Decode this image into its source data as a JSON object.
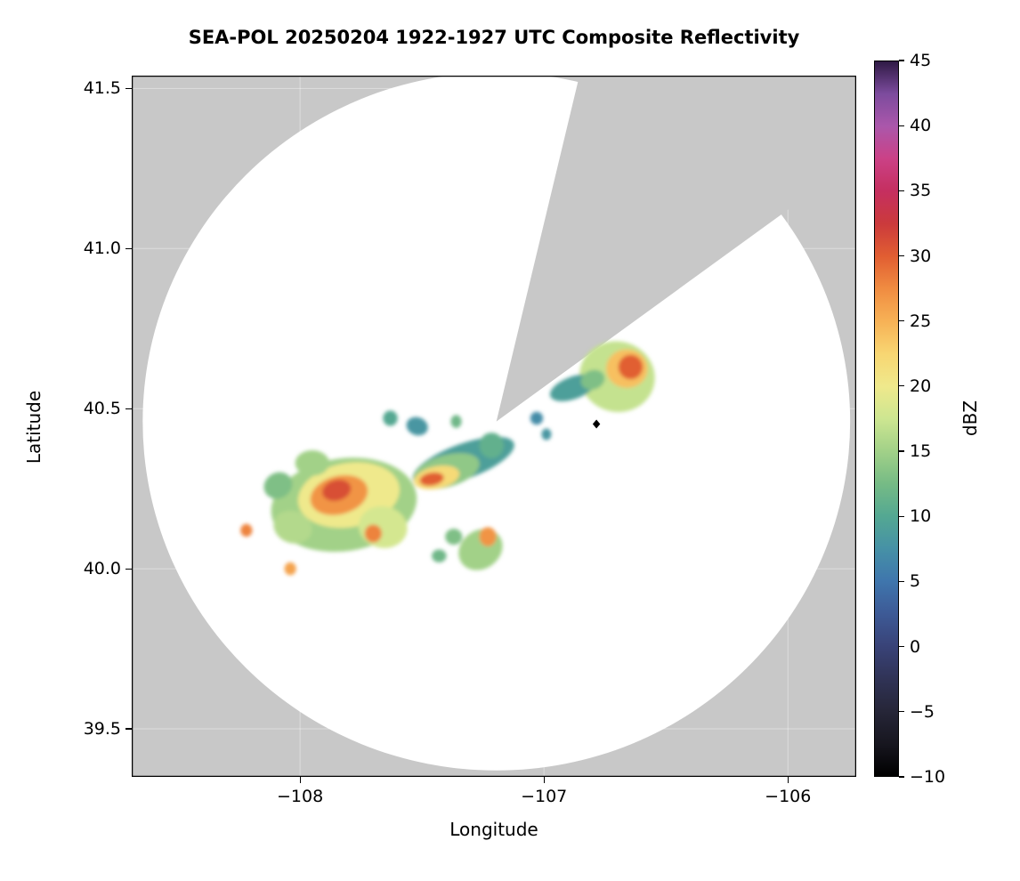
{
  "title": "SEA-POL 20250204 1922-1927 UTC Composite Reflectivity",
  "axes": {
    "xlabel": "Longitude",
    "ylabel": "Latitude",
    "x_ticks": [
      {
        "value": -108,
        "label": "−108"
      },
      {
        "value": -107,
        "label": "−107"
      },
      {
        "value": -106,
        "label": "−106"
      }
    ],
    "y_ticks": [
      {
        "value": 39.5,
        "label": "39.5"
      },
      {
        "value": 40.0,
        "label": "40.0"
      },
      {
        "value": 40.5,
        "label": "40.5"
      },
      {
        "value": 41.0,
        "label": "41.0"
      },
      {
        "value": 41.5,
        "label": "41.5"
      }
    ]
  },
  "colorbar": {
    "label": "dBZ",
    "min": -10,
    "max": 45,
    "ticks": [
      {
        "value": 45,
        "label": "45"
      },
      {
        "value": 40,
        "label": "40"
      },
      {
        "value": 35,
        "label": "35"
      },
      {
        "value": 30,
        "label": "30"
      },
      {
        "value": 25,
        "label": "25"
      },
      {
        "value": 20,
        "label": "20"
      },
      {
        "value": 15,
        "label": "15"
      },
      {
        "value": 10,
        "label": "10"
      },
      {
        "value": 5,
        "label": "5"
      },
      {
        "value": 0,
        "label": "0"
      },
      {
        "value": -5,
        "label": "−5"
      },
      {
        "value": -10,
        "label": "−10"
      }
    ],
    "stops": [
      [
        -10,
        "#000000"
      ],
      [
        -7.5,
        "#17161f"
      ],
      [
        -5,
        "#262638"
      ],
      [
        -2.5,
        "#303356"
      ],
      [
        0,
        "#394378"
      ],
      [
        2.5,
        "#3d5a96"
      ],
      [
        5,
        "#3f76ad"
      ],
      [
        7.5,
        "#4691a6"
      ],
      [
        10,
        "#54a892"
      ],
      [
        12.5,
        "#76bb85"
      ],
      [
        15,
        "#a2d188"
      ],
      [
        17.5,
        "#cde691"
      ],
      [
        20,
        "#efe98c"
      ],
      [
        22.5,
        "#f8d672"
      ],
      [
        25,
        "#f7b256"
      ],
      [
        27.5,
        "#f08c41"
      ],
      [
        30,
        "#e15e32"
      ],
      [
        32.5,
        "#cb3a3c"
      ],
      [
        35,
        "#c52f5f"
      ],
      [
        37.5,
        "#cb4186"
      ],
      [
        40,
        "#ab57ab"
      ],
      [
        42.5,
        "#7c4b9d"
      ],
      [
        45,
        "#2f1a45"
      ]
    ]
  },
  "chart_data": {
    "type": "heatmap",
    "title": "SEA-POL 20250204 1922-1927 UTC Composite Reflectivity",
    "xlabel": "Longitude",
    "ylabel": "Latitude",
    "xlim": [
      -108.69,
      -105.72
    ],
    "ylim": [
      39.35,
      41.54
    ],
    "grid": true,
    "mask_color": "#c8c8c8",
    "colorbar": {
      "label": "dBZ",
      "range": [
        -10,
        45
      ],
      "tick_step": 5
    },
    "radar": {
      "name": "SEA-POL",
      "center_lon": -107.195,
      "center_lat": 40.46,
      "range_lon_deg": 1.45,
      "range_lat_deg": 1.09
    },
    "blocked_sector_azimuth_deg": [
      13.5,
      54
    ],
    "marker": {
      "shape": "diamond",
      "color": "#000000",
      "lon": -106.785,
      "lat": 40.452
    },
    "echoes": [
      {
        "lon": -107.82,
        "lat": 40.2,
        "rx": 0.3,
        "ry": 0.145,
        "rot": -8,
        "dbz": 15
      },
      {
        "lon": -107.8,
        "lat": 40.23,
        "rx": 0.21,
        "ry": 0.1,
        "rot": -10,
        "dbz": 20
      },
      {
        "lon": -107.84,
        "lat": 40.23,
        "rx": 0.12,
        "ry": 0.06,
        "rot": -15,
        "dbz": 27
      },
      {
        "lon": -107.85,
        "lat": 40.245,
        "rx": 0.06,
        "ry": 0.032,
        "rot": -15,
        "dbz": 31
      },
      {
        "lon": -107.66,
        "lat": 40.13,
        "rx": 0.1,
        "ry": 0.065,
        "rot": 10,
        "dbz": 18
      },
      {
        "lon": -107.7,
        "lat": 40.11,
        "rx": 0.035,
        "ry": 0.028,
        "rot": 0,
        "dbz": 28
      },
      {
        "lon": -108.03,
        "lat": 40.13,
        "rx": 0.08,
        "ry": 0.05,
        "rot": 20,
        "dbz": 16
      },
      {
        "lon": -107.95,
        "lat": 40.33,
        "rx": 0.07,
        "ry": 0.04,
        "rot": 0,
        "dbz": 15
      },
      {
        "lon": -108.09,
        "lat": 40.26,
        "rx": 0.06,
        "ry": 0.04,
        "rot": -30,
        "dbz": 13
      },
      {
        "lon": -108.22,
        "lat": 40.12,
        "rx": 0.024,
        "ry": 0.02,
        "rot": 0,
        "dbz": 28
      },
      {
        "lon": -108.04,
        "lat": 40.0,
        "rx": 0.024,
        "ry": 0.02,
        "rot": 0,
        "dbz": 26
      },
      {
        "lon": -107.33,
        "lat": 40.335,
        "rx": 0.22,
        "ry": 0.055,
        "rot": -20,
        "dbz": 9
      },
      {
        "lon": -107.4,
        "lat": 40.305,
        "rx": 0.14,
        "ry": 0.05,
        "rot": -16,
        "dbz": 14
      },
      {
        "lon": -107.44,
        "lat": 40.285,
        "rx": 0.095,
        "ry": 0.035,
        "rot": -12,
        "dbz": 22
      },
      {
        "lon": -107.46,
        "lat": 40.28,
        "rx": 0.05,
        "ry": 0.02,
        "rot": -10,
        "dbz": 30
      },
      {
        "lon": -107.215,
        "lat": 40.385,
        "rx": 0.05,
        "ry": 0.04,
        "rot": 0,
        "dbz": 11
      },
      {
        "lon": -107.52,
        "lat": 40.445,
        "rx": 0.045,
        "ry": 0.028,
        "rot": 20,
        "dbz": 8
      },
      {
        "lon": -107.63,
        "lat": 40.47,
        "rx": 0.03,
        "ry": 0.024,
        "rot": 0,
        "dbz": 10
      },
      {
        "lon": -107.36,
        "lat": 40.46,
        "rx": 0.022,
        "ry": 0.02,
        "rot": 0,
        "dbz": 12
      },
      {
        "lon": -107.26,
        "lat": 40.06,
        "rx": 0.095,
        "ry": 0.06,
        "rot": -35,
        "dbz": 15
      },
      {
        "lon": -107.23,
        "lat": 40.1,
        "rx": 0.035,
        "ry": 0.03,
        "rot": 0,
        "dbz": 27
      },
      {
        "lon": -107.37,
        "lat": 40.1,
        "rx": 0.035,
        "ry": 0.025,
        "rot": 0,
        "dbz": 13
      },
      {
        "lon": -107.43,
        "lat": 40.04,
        "rx": 0.03,
        "ry": 0.02,
        "rot": 0,
        "dbz": 12
      },
      {
        "lon": -106.7,
        "lat": 40.6,
        "rx": 0.155,
        "ry": 0.11,
        "rot": 15,
        "dbz": 17
      },
      {
        "lon": -106.66,
        "lat": 40.625,
        "rx": 0.085,
        "ry": 0.06,
        "rot": 0,
        "dbz": 24
      },
      {
        "lon": -106.645,
        "lat": 40.63,
        "rx": 0.05,
        "ry": 0.038,
        "rot": 0,
        "dbz": 30
      },
      {
        "lon": -106.88,
        "lat": 40.565,
        "rx": 0.1,
        "ry": 0.035,
        "rot": -20,
        "dbz": 9
      },
      {
        "lon": -106.8,
        "lat": 40.59,
        "rx": 0.05,
        "ry": 0.03,
        "rot": -20,
        "dbz": 13
      },
      {
        "lon": -107.03,
        "lat": 40.47,
        "rx": 0.026,
        "ry": 0.02,
        "rot": 0,
        "dbz": 7
      },
      {
        "lon": -106.99,
        "lat": 40.42,
        "rx": 0.02,
        "ry": 0.018,
        "rot": 0,
        "dbz": 8
      }
    ]
  }
}
